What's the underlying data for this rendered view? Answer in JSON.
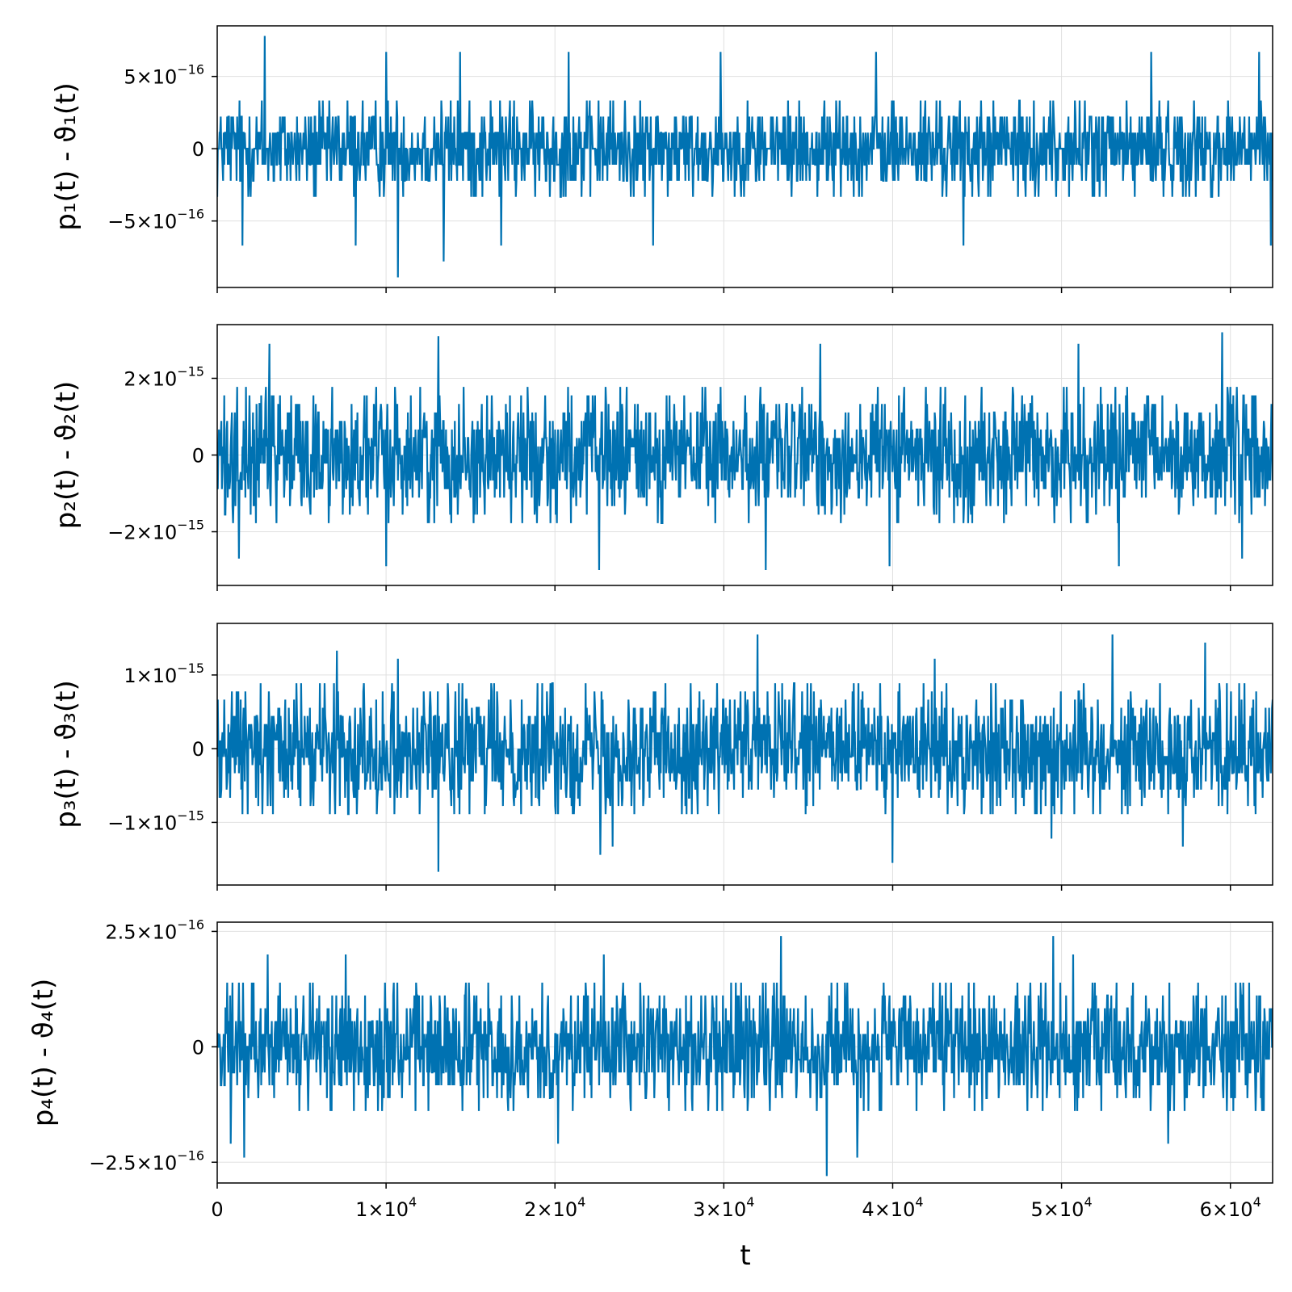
{
  "colors": {
    "series": "#0072b2",
    "grid": "#e0e0e0",
    "frame": "#000000",
    "background": "#ffffff"
  },
  "xaxis": {
    "label": "t",
    "range": [
      0,
      62500
    ],
    "ticks": [
      {
        "value": 0,
        "mant": "0",
        "exp": ""
      },
      {
        "value": 10000,
        "mant": "1×10",
        "exp": "4"
      },
      {
        "value": 20000,
        "mant": "2×10",
        "exp": "4"
      },
      {
        "value": 30000,
        "mant": "3×10",
        "exp": "4"
      },
      {
        "value": 40000,
        "mant": "4×10",
        "exp": "4"
      },
      {
        "value": 50000,
        "mant": "5×10",
        "exp": "4"
      },
      {
        "value": 60000,
        "mant": "6×10",
        "exp": "4"
      }
    ]
  },
  "chart_data": [
    {
      "type": "line",
      "ylabel": "p₁(t) - ϑ₁(t)",
      "ylim": [
        -9.6e-16,
        8.5e-16
      ],
      "grid": true,
      "yticks": [
        {
          "value": 5e-16,
          "mant": "5×10",
          "exp": "−16"
        },
        {
          "value": 0,
          "mant": "0",
          "exp": ""
        },
        {
          "value": -5e-16,
          "mant": "−5×10",
          "exp": "−16"
        }
      ],
      "series": [
        {
          "quantum": 1.11e-16,
          "typical_max": 3.3e-16,
          "spikes": [
            {
              "t": 2800,
              "v": 7.8e-16
            },
            {
              "t": 10700,
              "v": -8.9e-16
            },
            {
              "t": 13400,
              "v": -7.8e-16
            },
            {
              "t": 1500,
              "v": -6.7e-16
            },
            {
              "t": 8200,
              "v": -6.7e-16
            },
            {
              "t": 16800,
              "v": -6.7e-16
            },
            {
              "t": 25800,
              "v": -6.7e-16
            },
            {
              "t": 44200,
              "v": -6.7e-16
            },
            {
              "t": 62400,
              "v": -6.7e-16
            },
            {
              "t": 10000,
              "v": 6.7e-16
            },
            {
              "t": 14400,
              "v": 6.7e-16
            },
            {
              "t": 20800,
              "v": 6.7e-16
            },
            {
              "t": 29800,
              "v": 6.7e-16
            },
            {
              "t": 39000,
              "v": 6.7e-16
            },
            {
              "t": 55300,
              "v": 6.7e-16
            },
            {
              "t": 61700,
              "v": 6.7e-16
            }
          ]
        }
      ]
    },
    {
      "type": "line",
      "ylabel": "p₂(t) - ϑ₂(t)",
      "ylim": [
        -3.4e-15,
        3.4e-15
      ],
      "grid": true,
      "yticks": [
        {
          "value": 2e-15,
          "mant": "2×10",
          "exp": "−15"
        },
        {
          "value": 0,
          "mant": "0",
          "exp": ""
        },
        {
          "value": -2e-15,
          "mant": "−2×10",
          "exp": "−15"
        }
      ],
      "series": [
        {
          "quantum": 2.22e-16,
          "typical_max": 1.8e-15,
          "spikes": [
            {
              "t": 59500,
              "v": 3.2e-15
            },
            {
              "t": 13100,
              "v": 3.1e-15
            },
            {
              "t": 22600,
              "v": -3e-15
            },
            {
              "t": 32500,
              "v": -3e-15
            },
            {
              "t": 39800,
              "v": -2.9e-15
            },
            {
              "t": 10000,
              "v": -2.9e-15
            },
            {
              "t": 3100,
              "v": 2.9e-15
            },
            {
              "t": 35700,
              "v": 2.9e-15
            },
            {
              "t": 53400,
              "v": -2.9e-15
            },
            {
              "t": 51000,
              "v": 2.9e-15
            },
            {
              "t": 1300,
              "v": -2.7e-15
            },
            {
              "t": 60700,
              "v": -2.7e-15
            }
          ]
        }
      ]
    },
    {
      "type": "line",
      "ylabel": "p₃(t) - ϑ₃(t)",
      "ylim": [
        -1.85e-15,
        1.7e-15
      ],
      "grid": true,
      "yticks": [
        {
          "value": 1e-15,
          "mant": "1×10",
          "exp": "−15"
        },
        {
          "value": 0,
          "mant": "0",
          "exp": ""
        },
        {
          "value": -1e-15,
          "mant": "−1×10",
          "exp": "−15"
        }
      ],
      "series": [
        {
          "quantum": 1.11e-16,
          "typical_max": 8.9e-16,
          "spikes": [
            {
              "t": 13100,
              "v": -1.67e-15
            },
            {
              "t": 40000,
              "v": -1.55e-15
            },
            {
              "t": 32000,
              "v": 1.55e-15
            },
            {
              "t": 53000,
              "v": 1.55e-15
            },
            {
              "t": 58500,
              "v": 1.44e-15
            },
            {
              "t": 22700,
              "v": -1.44e-15
            },
            {
              "t": 23400,
              "v": -1.33e-15
            },
            {
              "t": 7100,
              "v": 1.33e-15
            },
            {
              "t": 10700,
              "v": 1.22e-15
            },
            {
              "t": 42500,
              "v": 1.22e-15
            },
            {
              "t": 57200,
              "v": -1.33e-15
            },
            {
              "t": 49400,
              "v": -1.22e-15
            }
          ]
        }
      ]
    },
    {
      "type": "line",
      "ylabel": "p₄(t) - ϑ₄(t)",
      "ylim": [
        -2.95e-16,
        2.7e-16
      ],
      "grid": true,
      "yticks": [
        {
          "value": 2.5e-16,
          "mant": "2.5×10",
          "exp": "−16"
        },
        {
          "value": 0,
          "mant": "0",
          "exp": ""
        },
        {
          "value": -2.5e-16,
          "mant": "−2.5×10",
          "exp": "−16"
        }
      ],
      "series": [
        {
          "quantum": 2.78e-17,
          "typical_max": 1.4e-16,
          "spikes": [
            {
              "t": 33400,
              "v": 2.4e-16
            },
            {
              "t": 49500,
              "v": 2.4e-16
            },
            {
              "t": 36100,
              "v": -2.8e-16
            },
            {
              "t": 1600,
              "v": -2.4e-16
            },
            {
              "t": 37900,
              "v": -2.4e-16
            },
            {
              "t": 3000,
              "v": 2e-16
            },
            {
              "t": 7600,
              "v": 2e-16
            },
            {
              "t": 22900,
              "v": 2e-16
            },
            {
              "t": 50700,
              "v": 2e-16
            },
            {
              "t": 800,
              "v": -2.1e-16
            },
            {
              "t": 20200,
              "v": -2.1e-16
            },
            {
              "t": 56300,
              "v": -2.1e-16
            }
          ]
        }
      ]
    }
  ]
}
